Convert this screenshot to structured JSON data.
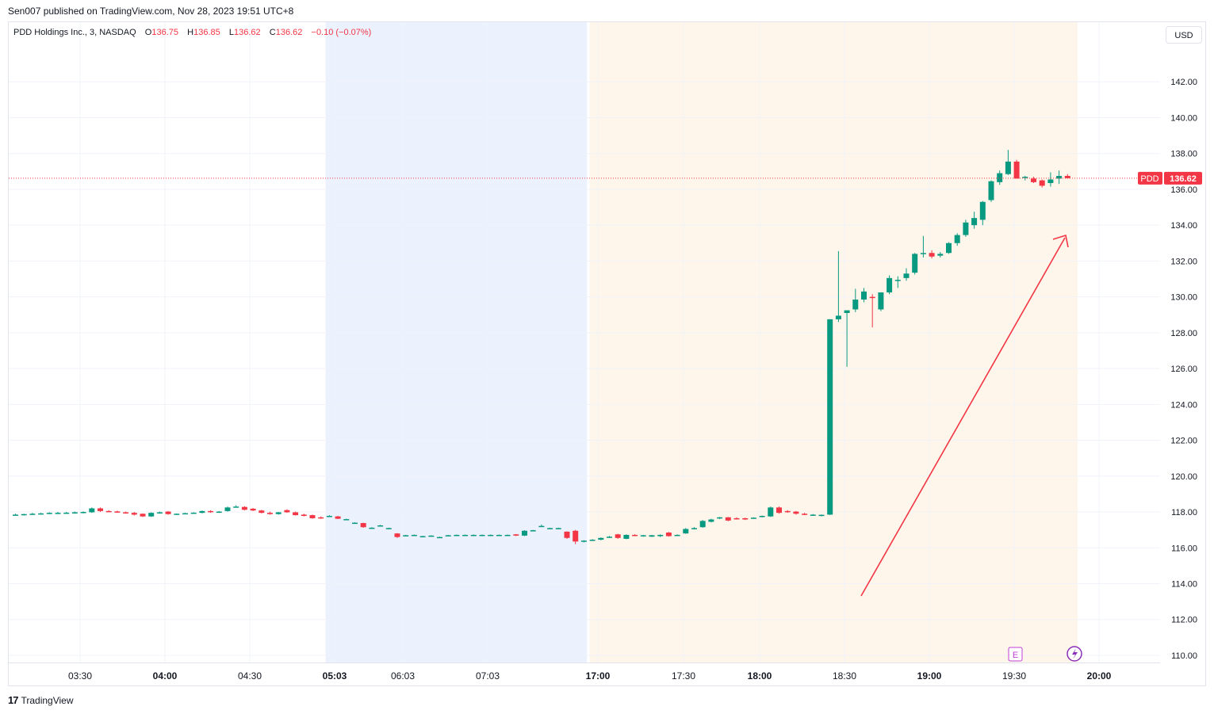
{
  "header": {
    "published": "Sen007 published on TradingView.com, Nov 28, 2023 19:51 UTC+8"
  },
  "legend": {
    "symbol": "PDD Holdings Inc., 3, NASDAQ",
    "o_label": "O",
    "o_value": "136.75",
    "h_label": "H",
    "h_value": "136.85",
    "l_label": "L",
    "l_value": "136.62",
    "c_label": "C",
    "c_value": "136.62",
    "change": "−0.10 (−0.07%)"
  },
  "currency_button": "USD",
  "price_badge": {
    "ticker": "PDD",
    "value": "136.62"
  },
  "earnings_marker": "E",
  "footer": {
    "brand": "TradingView",
    "logo_glyph": "17"
  },
  "colors": {
    "up": "#089981",
    "down": "#f23645",
    "premarket_bg": "#ecf1fe",
    "postmarket_bg": "#fef6ea",
    "arrow": "#f23645"
  },
  "chart_data": {
    "type": "candlestick",
    "ylim": [
      109.6,
      144.0
    ],
    "y_ticks": [
      110,
      112,
      114,
      116,
      118,
      120,
      122,
      124,
      126,
      128,
      130,
      132,
      134,
      136,
      138,
      140,
      142
    ],
    "x_ticks": [
      "03:30",
      "04:00",
      "04:30",
      "05:03",
      "06:03",
      "07:03",
      "17:00",
      "17:30",
      "18:00",
      "18:30",
      "19:00",
      "19:30",
      "20:00"
    ],
    "x_tick_bold": [
      false,
      true,
      false,
      true,
      false,
      false,
      true,
      false,
      true,
      false,
      true,
      false,
      true
    ],
    "last_price": 136.62,
    "sessions": [
      {
        "name": "premarket",
        "from_bar": 37,
        "to_bar": 68
      },
      {
        "name": "postmarket",
        "from_bar": 68,
        "to_bar": 125
      }
    ],
    "candles": [
      {
        "o": 117.85,
        "h": 117.9,
        "l": 117.8,
        "c": 117.85
      },
      {
        "o": 117.85,
        "h": 117.9,
        "l": 117.8,
        "c": 117.88
      },
      {
        "o": 117.88,
        "h": 117.95,
        "l": 117.85,
        "c": 117.9
      },
      {
        "o": 117.9,
        "h": 117.95,
        "l": 117.85,
        "c": 117.92
      },
      {
        "o": 117.92,
        "h": 117.98,
        "l": 117.88,
        "c": 117.95
      },
      {
        "o": 117.95,
        "h": 118.0,
        "l": 117.9,
        "c": 117.95
      },
      {
        "o": 117.95,
        "h": 118.0,
        "l": 117.9,
        "c": 117.96
      },
      {
        "o": 117.96,
        "h": 118.02,
        "l": 117.9,
        "c": 117.98
      },
      {
        "o": 117.98,
        "h": 118.03,
        "l": 117.92,
        "c": 118.0
      },
      {
        "o": 117.98,
        "h": 118.25,
        "l": 117.95,
        "c": 118.2
      },
      {
        "o": 118.2,
        "h": 118.25,
        "l": 118.0,
        "c": 118.05
      },
      {
        "o": 118.05,
        "h": 118.1,
        "l": 118.0,
        "c": 118.03
      },
      {
        "o": 118.03,
        "h": 118.07,
        "l": 117.95,
        "c": 117.98
      },
      {
        "o": 117.98,
        "h": 118.02,
        "l": 117.9,
        "c": 117.95
      },
      {
        "o": 117.95,
        "h": 118.0,
        "l": 117.8,
        "c": 117.85
      },
      {
        "o": 117.9,
        "h": 117.92,
        "l": 117.72,
        "c": 117.75
      },
      {
        "o": 117.75,
        "h": 117.98,
        "l": 117.72,
        "c": 117.95
      },
      {
        "o": 117.95,
        "h": 118.02,
        "l": 117.9,
        "c": 117.98
      },
      {
        "o": 118.02,
        "h": 118.05,
        "l": 117.85,
        "c": 117.88
      },
      {
        "o": 117.88,
        "h": 117.92,
        "l": 117.85,
        "c": 117.9
      },
      {
        "o": 117.9,
        "h": 117.95,
        "l": 117.88,
        "c": 117.93
      },
      {
        "o": 117.93,
        "h": 117.98,
        "l": 117.9,
        "c": 117.96
      },
      {
        "o": 117.95,
        "h": 118.08,
        "l": 117.92,
        "c": 118.05
      },
      {
        "o": 118.05,
        "h": 118.1,
        "l": 117.95,
        "c": 118.0
      },
      {
        "o": 118.0,
        "h": 118.05,
        "l": 117.95,
        "c": 118.02
      },
      {
        "o": 118.05,
        "h": 118.3,
        "l": 118.02,
        "c": 118.25
      },
      {
        "o": 118.28,
        "h": 118.38,
        "l": 118.25,
        "c": 118.3
      },
      {
        "o": 118.28,
        "h": 118.32,
        "l": 118.08,
        "c": 118.12
      },
      {
        "o": 118.18,
        "h": 118.22,
        "l": 118.05,
        "c": 118.08
      },
      {
        "o": 118.08,
        "h": 118.12,
        "l": 117.92,
        "c": 117.95
      },
      {
        "o": 117.95,
        "h": 118.02,
        "l": 117.85,
        "c": 117.88
      },
      {
        "o": 117.88,
        "h": 118.0,
        "l": 117.85,
        "c": 117.98
      },
      {
        "o": 118.1,
        "h": 118.15,
        "l": 117.95,
        "c": 117.98
      },
      {
        "o": 117.98,
        "h": 118.02,
        "l": 117.8,
        "c": 117.82
      },
      {
        "o": 117.85,
        "h": 117.9,
        "l": 117.75,
        "c": 117.78
      },
      {
        "o": 117.82,
        "h": 117.85,
        "l": 117.62,
        "c": 117.65
      },
      {
        "o": 117.7,
        "h": 117.75,
        "l": 117.62,
        "c": 117.65
      },
      {
        "o": 117.78,
        "h": 117.82,
        "l": 117.75,
        "c": 117.78
      },
      {
        "o": 117.75,
        "h": 117.78,
        "l": 117.6,
        "c": 117.62
      },
      {
        "o": 117.6,
        "h": 117.62,
        "l": 117.58,
        "c": 117.6
      },
      {
        "o": 117.4,
        "h": 117.42,
        "l": 117.38,
        "c": 117.4
      },
      {
        "o": 117.38,
        "h": 117.4,
        "l": 117.12,
        "c": 117.15
      },
      {
        "o": 117.1,
        "h": 117.15,
        "l": 117.08,
        "c": 117.12
      },
      {
        "o": 117.25,
        "h": 117.28,
        "l": 117.22,
        "c": 117.25
      },
      {
        "o": 117.1,
        "h": 117.12,
        "l": 117.08,
        "c": 117.1
      },
      {
        "o": 116.8,
        "h": 116.82,
        "l": 116.55,
        "c": 116.6
      },
      {
        "o": 116.7,
        "h": 116.72,
        "l": 116.68,
        "c": 116.7
      },
      {
        "o": 116.72,
        "h": 116.74,
        "l": 116.7,
        "c": 116.72
      },
      {
        "o": 116.65,
        "h": 116.67,
        "l": 116.63,
        "c": 116.65
      },
      {
        "o": 116.68,
        "h": 116.7,
        "l": 116.66,
        "c": 116.68
      },
      {
        "o": 116.6,
        "h": 116.62,
        "l": 116.58,
        "c": 116.6
      },
      {
        "o": 116.7,
        "h": 116.72,
        "l": 116.68,
        "c": 116.7
      },
      {
        "o": 116.72,
        "h": 116.74,
        "l": 116.7,
        "c": 116.72
      },
      {
        "o": 116.72,
        "h": 116.74,
        "l": 116.7,
        "c": 116.72
      },
      {
        "o": 116.72,
        "h": 116.74,
        "l": 116.7,
        "c": 116.72
      },
      {
        "o": 116.72,
        "h": 116.74,
        "l": 116.7,
        "c": 116.72
      },
      {
        "o": 116.72,
        "h": 116.74,
        "l": 116.7,
        "c": 116.72
      },
      {
        "o": 116.72,
        "h": 116.74,
        "l": 116.7,
        "c": 116.72
      },
      {
        "o": 116.72,
        "h": 116.74,
        "l": 116.7,
        "c": 116.72
      },
      {
        "o": 116.75,
        "h": 116.77,
        "l": 116.65,
        "c": 116.68
      },
      {
        "o": 116.68,
        "h": 116.98,
        "l": 116.65,
        "c": 116.95
      },
      {
        "o": 116.95,
        "h": 117.0,
        "l": 116.92,
        "c": 116.98
      },
      {
        "o": 117.2,
        "h": 117.3,
        "l": 117.18,
        "c": 117.22
      },
      {
        "o": 117.1,
        "h": 117.12,
        "l": 117.08,
        "c": 117.1
      },
      {
        "o": 117.1,
        "h": 117.12,
        "l": 117.08,
        "c": 117.1
      },
      {
        "o": 116.9,
        "h": 116.92,
        "l": 116.5,
        "c": 116.55
      },
      {
        "o": 116.95,
        "h": 117.0,
        "l": 116.2,
        "c": 116.35
      },
      {
        "o": 116.35,
        "h": 116.42,
        "l": 116.3,
        "c": 116.4
      },
      {
        "o": 116.4,
        "h": 116.48,
        "l": 116.38,
        "c": 116.45
      },
      {
        "o": 116.45,
        "h": 116.58,
        "l": 116.42,
        "c": 116.55
      },
      {
        "o": 116.6,
        "h": 116.66,
        "l": 116.55,
        "c": 116.62
      },
      {
        "o": 116.75,
        "h": 116.78,
        "l": 116.5,
        "c": 116.55
      },
      {
        "o": 116.5,
        "h": 116.75,
        "l": 116.48,
        "c": 116.72
      },
      {
        "o": 116.72,
        "h": 116.76,
        "l": 116.65,
        "c": 116.7
      },
      {
        "o": 116.65,
        "h": 116.72,
        "l": 116.62,
        "c": 116.7
      },
      {
        "o": 116.62,
        "h": 116.72,
        "l": 116.6,
        "c": 116.7
      },
      {
        "o": 116.65,
        "h": 116.75,
        "l": 116.6,
        "c": 116.72
      },
      {
        "o": 116.85,
        "h": 116.88,
        "l": 116.62,
        "c": 116.65
      },
      {
        "o": 116.7,
        "h": 116.75,
        "l": 116.68,
        "c": 116.72
      },
      {
        "o": 116.8,
        "h": 117.1,
        "l": 116.78,
        "c": 117.05
      },
      {
        "o": 117.05,
        "h": 117.15,
        "l": 117.02,
        "c": 117.1
      },
      {
        "o": 117.15,
        "h": 117.55,
        "l": 117.12,
        "c": 117.5
      },
      {
        "o": 117.45,
        "h": 117.62,
        "l": 117.42,
        "c": 117.58
      },
      {
        "o": 117.65,
        "h": 117.72,
        "l": 117.6,
        "c": 117.7
      },
      {
        "o": 117.7,
        "h": 117.72,
        "l": 117.48,
        "c": 117.52
      },
      {
        "o": 117.65,
        "h": 117.7,
        "l": 117.58,
        "c": 117.62
      },
      {
        "o": 117.65,
        "h": 117.68,
        "l": 117.55,
        "c": 117.58
      },
      {
        "o": 117.65,
        "h": 117.7,
        "l": 117.62,
        "c": 117.68
      },
      {
        "o": 117.75,
        "h": 117.8,
        "l": 117.7,
        "c": 117.78
      },
      {
        "o": 117.75,
        "h": 118.3,
        "l": 117.72,
        "c": 118.25
      },
      {
        "o": 118.25,
        "h": 118.3,
        "l": 117.9,
        "c": 117.95
      },
      {
        "o": 118.05,
        "h": 118.1,
        "l": 117.95,
        "c": 118.0
      },
      {
        "o": 118.02,
        "h": 118.05,
        "l": 117.85,
        "c": 117.9
      },
      {
        "o": 117.9,
        "h": 117.95,
        "l": 117.82,
        "c": 117.85
      },
      {
        "o": 117.8,
        "h": 117.88,
        "l": 117.78,
        "c": 117.85
      },
      {
        "o": 117.8,
        "h": 117.86,
        "l": 117.76,
        "c": 117.84
      },
      {
        "o": 117.85,
        "h": 128.75,
        "l": 117.83,
        "c": 128.75
      },
      {
        "o": 128.75,
        "h": 132.55,
        "l": 128.6,
        "c": 128.95
      },
      {
        "o": 129.1,
        "h": 129.25,
        "l": 126.1,
        "c": 129.25
      },
      {
        "o": 129.3,
        "h": 130.45,
        "l": 129.15,
        "c": 129.85
      },
      {
        "o": 129.85,
        "h": 130.5,
        "l": 129.7,
        "c": 130.3
      },
      {
        "o": 130.0,
        "h": 130.15,
        "l": 128.3,
        "c": 129.95
      },
      {
        "o": 129.3,
        "h": 130.25,
        "l": 129.2,
        "c": 130.25
      },
      {
        "o": 130.25,
        "h": 131.2,
        "l": 130.15,
        "c": 131.05
      },
      {
        "o": 130.95,
        "h": 131.15,
        "l": 130.5,
        "c": 130.95
      },
      {
        "o": 131.05,
        "h": 131.6,
        "l": 130.9,
        "c": 131.3
      },
      {
        "o": 131.35,
        "h": 132.45,
        "l": 131.25,
        "c": 132.4
      },
      {
        "o": 132.4,
        "h": 133.4,
        "l": 132.2,
        "c": 132.45
      },
      {
        "o": 132.45,
        "h": 132.6,
        "l": 132.15,
        "c": 132.25
      },
      {
        "o": 132.3,
        "h": 132.5,
        "l": 132.2,
        "c": 132.4
      },
      {
        "o": 132.45,
        "h": 133.05,
        "l": 132.4,
        "c": 133.0
      },
      {
        "o": 133.0,
        "h": 133.55,
        "l": 132.85,
        "c": 133.45
      },
      {
        "o": 133.45,
        "h": 134.3,
        "l": 133.35,
        "c": 134.15
      },
      {
        "o": 134.0,
        "h": 134.75,
        "l": 133.8,
        "c": 134.4
      },
      {
        "o": 134.3,
        "h": 135.35,
        "l": 134.0,
        "c": 135.3
      },
      {
        "o": 135.4,
        "h": 136.5,
        "l": 135.3,
        "c": 136.45
      },
      {
        "o": 136.4,
        "h": 137.05,
        "l": 136.25,
        "c": 136.9
      },
      {
        "o": 136.85,
        "h": 138.2,
        "l": 136.8,
        "c": 137.55
      },
      {
        "o": 137.55,
        "h": 137.65,
        "l": 136.65,
        "c": 136.6
      },
      {
        "o": 136.65,
        "h": 136.75,
        "l": 136.5,
        "c": 136.7
      },
      {
        "o": 136.6,
        "h": 136.7,
        "l": 136.35,
        "c": 136.4
      },
      {
        "o": 136.5,
        "h": 136.55,
        "l": 136.1,
        "c": 136.2
      },
      {
        "o": 136.35,
        "h": 136.95,
        "l": 136.15,
        "c": 136.55
      },
      {
        "o": 136.6,
        "h": 137.05,
        "l": 136.3,
        "c": 136.75
      },
      {
        "o": 136.75,
        "h": 136.85,
        "l": 136.62,
        "c": 136.62
      }
    ]
  }
}
